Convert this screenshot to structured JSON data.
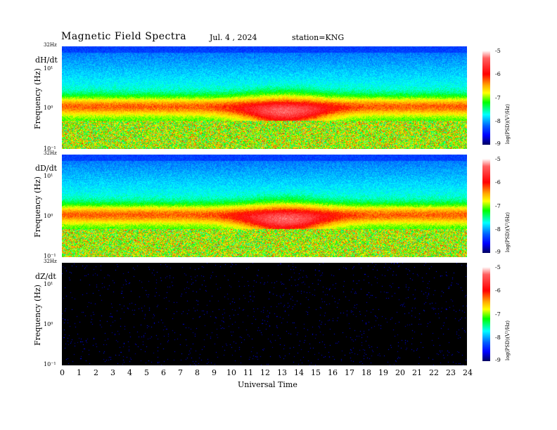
{
  "header": {
    "title": "Magnetic  Field  Spectra",
    "date": "Jul.  4  , 2024",
    "station": "station=KNG"
  },
  "chart_data": [
    {
      "type": "heatmap",
      "panel_label": "dH/dt",
      "ylabel": "Frequency  (Hz)",
      "max_freq_label": "32Hz",
      "ytick_labels": [
        "10¹",
        "10⁰",
        "10⁻¹"
      ],
      "colorbar_label": "log(PSD)(V²/Hz)",
      "colorbar_ticks": [
        "-5",
        "-6",
        "-7",
        "-8",
        "-9"
      ],
      "xlim": [
        0,
        24
      ]
    },
    {
      "type": "heatmap",
      "panel_label": "dD/dt",
      "ylabel": "Frequency  (Hz)",
      "max_freq_label": "32Hz",
      "ytick_labels": [
        "10¹",
        "10⁰",
        "10⁻¹"
      ],
      "colorbar_label": "log(PSD)(V²/Hz)",
      "colorbar_ticks": [
        "-5",
        "-6",
        "-7",
        "-8",
        "-9"
      ],
      "xlim": [
        0,
        24
      ]
    },
    {
      "type": "heatmap",
      "panel_label": "dZ/dt",
      "ylabel": "Frequency  (Hz)",
      "max_freq_label": "32Hz",
      "ytick_labels": [
        "10¹",
        "10⁰",
        "10⁻¹"
      ],
      "colorbar_label": "log(PSD)(V²/Hz)",
      "colorbar_ticks": [
        "-5",
        "-6",
        "-7",
        "-8",
        "-9"
      ],
      "xlim": [
        0,
        24
      ]
    }
  ],
  "xaxis": {
    "label": "Universal Time",
    "ticks": [
      "0",
      "1",
      "2",
      "3",
      "4",
      "5",
      "6",
      "7",
      "8",
      "9",
      "10",
      "11",
      "12",
      "13",
      "14",
      "15",
      "16",
      "17",
      "18",
      "19",
      "20",
      "21",
      "22",
      "23",
      "24"
    ]
  },
  "colors": {
    "panel_dark": "#000000",
    "band_high": "#ff0000",
    "band_mid": "#00ff00",
    "band_low": "#00ddff",
    "top_blue": "#0060ff"
  }
}
